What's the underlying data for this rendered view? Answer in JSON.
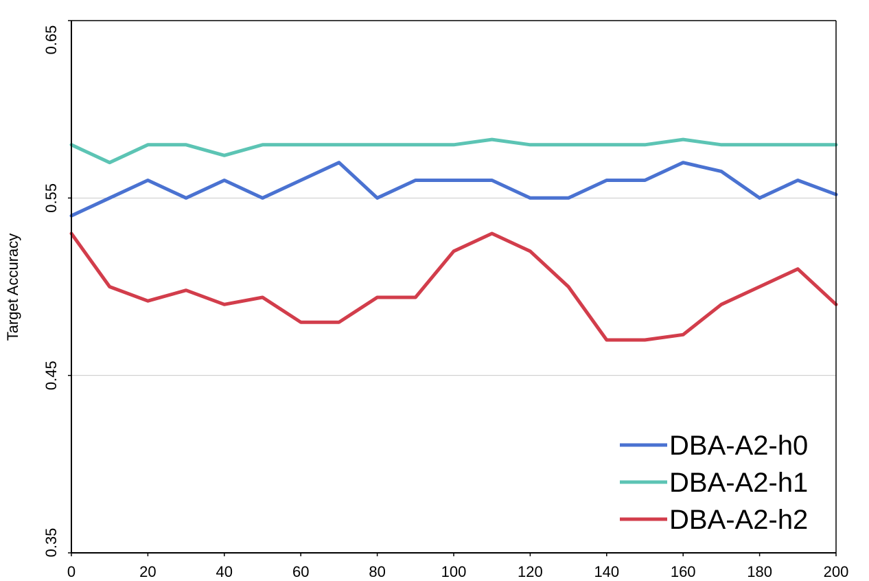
{
  "chart_data": {
    "type": "line",
    "title": "",
    "xlabel": "",
    "ylabel": "Target  Accuracy",
    "xlim": [
      0,
      200
    ],
    "ylim": [
      0.35,
      0.65
    ],
    "x_ticks": [
      "0",
      "20",
      "40",
      "60",
      "80",
      "100",
      "120",
      "140",
      "160",
      "180",
      "200"
    ],
    "y_ticks": [
      "0.35",
      "0.45",
      "0.55",
      "0.65"
    ],
    "grid": "horizontal",
    "legend_position": "bottom-right",
    "x": [
      0,
      10,
      20,
      30,
      40,
      50,
      60,
      70,
      80,
      90,
      100,
      110,
      120,
      130,
      140,
      150,
      160,
      170,
      180,
      190,
      200
    ],
    "series": [
      {
        "name": "DBA-A2-h0",
        "color": "#4a72d1",
        "values": [
          0.54,
          0.55,
          0.56,
          0.55,
          0.56,
          0.55,
          0.56,
          0.57,
          0.55,
          0.56,
          0.56,
          0.56,
          0.55,
          0.55,
          0.56,
          0.56,
          0.57,
          0.565,
          0.55,
          0.56,
          0.552
        ]
      },
      {
        "name": "DBA-A2-h1",
        "color": "#5cc4b4",
        "values": [
          0.58,
          0.57,
          0.58,
          0.58,
          0.574,
          0.58,
          0.58,
          0.58,
          0.58,
          0.58,
          0.58,
          0.583,
          0.58,
          0.58,
          0.58,
          0.58,
          0.583,
          0.58,
          0.58,
          0.58,
          0.58
        ]
      },
      {
        "name": "DBA-A2-h2",
        "color": "#d23d4b",
        "values": [
          0.53,
          0.5,
          0.492,
          0.498,
          0.49,
          0.494,
          0.48,
          0.48,
          0.494,
          0.494,
          0.52,
          0.53,
          0.52,
          0.5,
          0.47,
          0.47,
          0.473,
          0.49,
          0.5,
          0.51,
          0.49
        ]
      }
    ]
  }
}
